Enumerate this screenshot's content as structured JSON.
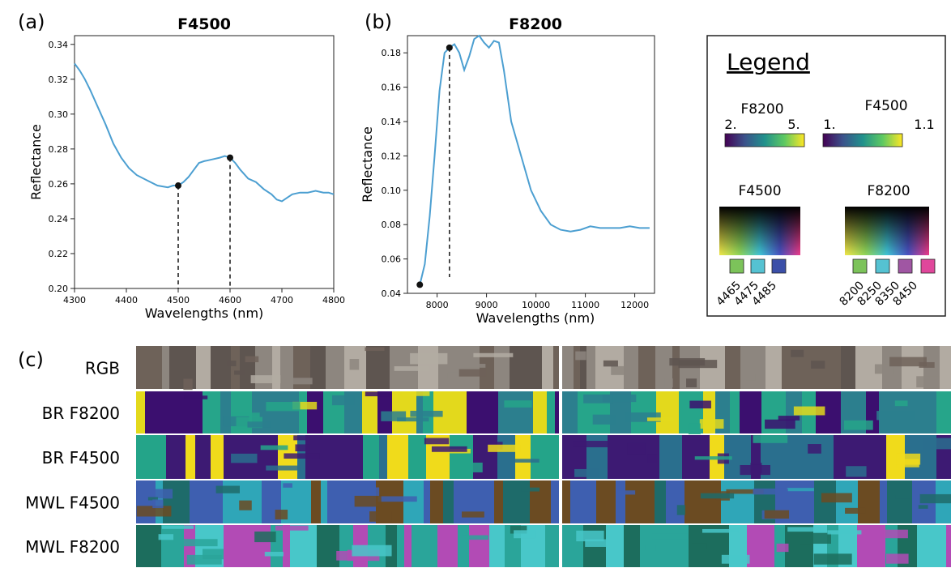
{
  "panels": {
    "a": "(a)",
    "b": "(b)",
    "c": "(c)"
  },
  "chart_data": [
    {
      "id": "a",
      "type": "line",
      "title": "F4500",
      "xlabel": "Wavelengths (nm)",
      "ylabel": "Reflectance",
      "xlim": [
        4300,
        4800
      ],
      "ylim": [
        0.2,
        0.345
      ],
      "xticks": [
        4300,
        4400,
        4500,
        4600,
        4700,
        4800
      ],
      "yticks": [
        0.2,
        0.22,
        0.24,
        0.26,
        0.28,
        0.3,
        0.32,
        0.34
      ],
      "ytick_labels": [
        "0.20",
        "0.22",
        "0.24",
        "0.26",
        "0.28",
        "0.30",
        "0.32",
        "0.34"
      ],
      "grid": false,
      "line_color": "#4c9fd1",
      "series": [
        {
          "x": [
            4300,
            4310,
            4320,
            4330,
            4345,
            4360,
            4375,
            4390,
            4405,
            4420,
            4440,
            4460,
            4480,
            4490,
            4500,
            4510,
            4520,
            4530,
            4540,
            4550,
            4565,
            4580,
            4590,
            4600,
            4610,
            4620,
            4635,
            4650,
            4665,
            4680,
            4690,
            4700,
            4710,
            4720,
            4735,
            4750,
            4765,
            4780,
            4790,
            4800
          ],
          "y": [
            0.329,
            0.325,
            0.32,
            0.314,
            0.304,
            0.294,
            0.283,
            0.275,
            0.269,
            0.265,
            0.262,
            0.259,
            0.258,
            0.259,
            0.259,
            0.261,
            0.264,
            0.268,
            0.272,
            0.273,
            0.274,
            0.275,
            0.276,
            0.275,
            0.272,
            0.268,
            0.263,
            0.261,
            0.257,
            0.254,
            0.251,
            0.25,
            0.252,
            0.254,
            0.255,
            0.255,
            0.256,
            0.255,
            0.255,
            0.254
          ]
        }
      ],
      "markers": [
        {
          "x": 4500,
          "y": 0.259
        },
        {
          "x": 4600,
          "y": 0.275
        }
      ]
    },
    {
      "id": "b",
      "type": "line",
      "title": "F8200",
      "xlabel": "Wavelengths (nm)",
      "ylabel": "Reflectance",
      "xlim": [
        7400,
        12400
      ],
      "ylim": [
        0.04,
        0.19
      ],
      "xticks": [
        8000,
        9000,
        10000,
        11000,
        12000
      ],
      "yticks": [
        0.04,
        0.06,
        0.08,
        0.1,
        0.12,
        0.14,
        0.16,
        0.18
      ],
      "ytick_labels": [
        "0.04",
        "0.06",
        "0.08",
        "0.10",
        "0.12",
        "0.14",
        "0.16",
        "0.18"
      ],
      "grid": false,
      "line_color": "#4c9fd1",
      "series": [
        {
          "x": [
            7650,
            7750,
            7850,
            7950,
            8050,
            8150,
            8250,
            8350,
            8450,
            8550,
            8650,
            8750,
            8850,
            8950,
            9050,
            9150,
            9250,
            9350,
            9500,
            9700,
            9900,
            10100,
            10300,
            10500,
            10700,
            10900,
            11100,
            11300,
            11500,
            11700,
            11900,
            12100,
            12300
          ],
          "y": [
            0.045,
            0.057,
            0.085,
            0.12,
            0.158,
            0.18,
            0.183,
            0.185,
            0.18,
            0.17,
            0.178,
            0.188,
            0.19,
            0.186,
            0.183,
            0.187,
            0.186,
            0.17,
            0.14,
            0.12,
            0.1,
            0.088,
            0.08,
            0.077,
            0.076,
            0.077,
            0.079,
            0.078,
            0.078,
            0.078,
            0.079,
            0.078,
            0.078
          ]
        }
      ],
      "markers": [
        {
          "x": 7650,
          "y": 0.045
        },
        {
          "x": 8250,
          "y": 0.183
        }
      ]
    }
  ],
  "legend": {
    "title": "Legend",
    "colorbars": [
      {
        "label": "F8200",
        "min": "2.",
        "max": "5."
      },
      {
        "label": "F4500",
        "min": "1.",
        "max": "1.1"
      }
    ],
    "rgb_maps": [
      {
        "label": "F4500",
        "swatches": [
          {
            "value": "4465",
            "color": "#7cc35a"
          },
          {
            "value": "4475",
            "color": "#55c2d2"
          },
          {
            "value": "4485",
            "color": "#3b4fa8"
          }
        ]
      },
      {
        "label": "F8200",
        "swatches": [
          {
            "value": "8200",
            "color": "#7cc35a"
          },
          {
            "value": "8250",
            "color": "#55c2d2"
          },
          {
            "value": "8350",
            "color": "#a056a3"
          },
          {
            "value": "8450",
            "color": "#e0479b"
          }
        ]
      }
    ]
  },
  "strips": [
    {
      "label": "RGB",
      "palette": [
        "#5e5550",
        "#8d867f",
        "#b2aba2",
        "#6e6259"
      ]
    },
    {
      "label": "BR F8200",
      "palette": [
        "#3b0f6f",
        "#2c7f8e",
        "#26a58a",
        "#e3d91c"
      ]
    },
    {
      "label": "BR F4500",
      "palette": [
        "#3d1a73",
        "#2a6f8e",
        "#24a489",
        "#f0db1b"
      ]
    },
    {
      "label": "MWL F4500",
      "palette": [
        "#1e6b6a",
        "#2fa6b8",
        "#3e5fb0",
        "#6b4b22"
      ]
    },
    {
      "label": "MWL F8200",
      "palette": [
        "#2aa59a",
        "#48c7c9",
        "#1c6d5d",
        "#b24bb5"
      ]
    }
  ]
}
